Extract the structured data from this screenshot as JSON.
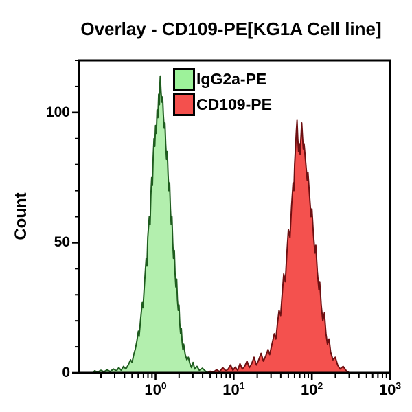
{
  "title": "Overlay - CD109-PE[KG1A Cell line]",
  "colors": {
    "background": "#ffffff",
    "axis": "#000000",
    "text": "#000000",
    "green_fill": "#b3efae",
    "green_stroke": "#1e5c1e",
    "red_fill": "#f4514e",
    "red_stroke": "#6e1012"
  },
  "chart_data": {
    "type": "area",
    "subtype": "flow-cytometry-overlay-histogram",
    "title": "Overlay - CD109-PE[KG1A Cell line]",
    "xlabel": "",
    "ylabel": "Count",
    "grid": false,
    "legend_position": "top-center-inside",
    "x_axis": {
      "scale": "log10",
      "log_min": -0.98,
      "log_max": 3.0,
      "major_ticks": [
        {
          "label_base": "10",
          "label_exp": "0",
          "log": 0
        },
        {
          "label_base": "10",
          "label_exp": "1",
          "log": 1
        },
        {
          "label_base": "10",
          "label_exp": "2",
          "log": 2
        },
        {
          "label_base": "10",
          "label_exp": "3",
          "log": 3
        }
      ]
    },
    "y_axis": {
      "min": 0,
      "max": 120,
      "major_ticks": [
        {
          "label": "0",
          "value": 0
        },
        {
          "label": "50",
          "value": 50
        },
        {
          "label": "100",
          "value": 100
        }
      ],
      "minor_tick_values": [
        10,
        20,
        30,
        40,
        60,
        70,
        80,
        90,
        110,
        120
      ]
    },
    "series": [
      {
        "name": "IgG2a-PE",
        "legend_fill": "#9df29a",
        "fill": "#b3efae",
        "stroke": "#1e5c1e",
        "peak": {
          "x_log": 0.06,
          "x_value": 1.1,
          "count": 114
        },
        "points": [
          [
            -0.98,
            0
          ],
          [
            -0.8,
            0
          ],
          [
            -0.78,
            0.8
          ],
          [
            -0.74,
            0.3
          ],
          [
            -0.7,
            1
          ],
          [
            -0.66,
            0.4
          ],
          [
            -0.62,
            1.2
          ],
          [
            -0.58,
            0.5
          ],
          [
            -0.54,
            1.5
          ],
          [
            -0.5,
            0.8
          ],
          [
            -0.47,
            2
          ],
          [
            -0.44,
            1
          ],
          [
            -0.41,
            2.5
          ],
          [
            -0.38,
            1.5
          ],
          [
            -0.35,
            3
          ],
          [
            -0.32,
            5
          ],
          [
            -0.3,
            4
          ],
          [
            -0.28,
            7
          ],
          [
            -0.26,
            9
          ],
          [
            -0.24,
            12
          ],
          [
            -0.22,
            16
          ],
          [
            -0.21,
            14
          ],
          [
            -0.19,
            21
          ],
          [
            -0.17,
            27
          ],
          [
            -0.16,
            25
          ],
          [
            -0.14,
            35
          ],
          [
            -0.12,
            44
          ],
          [
            -0.11,
            41
          ],
          [
            -0.1,
            52
          ],
          [
            -0.08,
            60
          ],
          [
            -0.07,
            57
          ],
          [
            -0.06,
            68
          ],
          [
            -0.05,
            75
          ],
          [
            -0.04,
            72
          ],
          [
            -0.03,
            83
          ],
          [
            -0.02,
            90
          ],
          [
            -0.01,
            87
          ],
          [
            0.0,
            95
          ],
          [
            0.01,
            92
          ],
          [
            0.02,
            101
          ],
          [
            0.03,
            98
          ],
          [
            0.04,
            107
          ],
          [
            0.05,
            103
          ],
          [
            0.055,
            110
          ],
          [
            0.06,
            114
          ],
          [
            0.07,
            108
          ],
          [
            0.08,
            104
          ],
          [
            0.09,
            106
          ],
          [
            0.1,
            99
          ],
          [
            0.11,
            94
          ],
          [
            0.12,
            96
          ],
          [
            0.13,
            88
          ],
          [
            0.14,
            82
          ],
          [
            0.15,
            85
          ],
          [
            0.16,
            76
          ],
          [
            0.17,
            70
          ],
          [
            0.18,
            73
          ],
          [
            0.19,
            63
          ],
          [
            0.2,
            57
          ],
          [
            0.21,
            60
          ],
          [
            0.22,
            50
          ],
          [
            0.23,
            44
          ],
          [
            0.24,
            47
          ],
          [
            0.25,
            38
          ],
          [
            0.26,
            33
          ],
          [
            0.27,
            36
          ],
          [
            0.28,
            28
          ],
          [
            0.29,
            24
          ],
          [
            0.3,
            26
          ],
          [
            0.31,
            19
          ],
          [
            0.32,
            15
          ],
          [
            0.33,
            17
          ],
          [
            0.34,
            12
          ],
          [
            0.35,
            9
          ],
          [
            0.36,
            11
          ],
          [
            0.38,
            7
          ],
          [
            0.4,
            5
          ],
          [
            0.42,
            6
          ],
          [
            0.44,
            3.5
          ],
          [
            0.46,
            2
          ],
          [
            0.48,
            4
          ],
          [
            0.5,
            1.5
          ],
          [
            0.53,
            2.5
          ],
          [
            0.56,
            1
          ],
          [
            0.6,
            1.8
          ],
          [
            0.64,
            0.6
          ],
          [
            0.68,
            0
          ]
        ]
      },
      {
        "name": "CD109-PE",
        "legend_fill": "#f4504d",
        "fill": "#f4514e",
        "stroke": "#6e1012",
        "peak": {
          "x_log": 1.81,
          "x_value": 65,
          "count": 97
        },
        "points": [
          [
            0.66,
            0
          ],
          [
            0.7,
            0.6
          ],
          [
            0.74,
            0.3
          ],
          [
            0.78,
            1.2
          ],
          [
            0.82,
            0.5
          ],
          [
            0.86,
            2
          ],
          [
            0.9,
            0.8
          ],
          [
            0.93,
            1.5
          ],
          [
            0.96,
            3
          ],
          [
            0.99,
            1
          ],
          [
            1.02,
            2.2
          ],
          [
            1.05,
            1
          ],
          [
            1.08,
            3.5
          ],
          [
            1.11,
            1.5
          ],
          [
            1.14,
            2.5
          ],
          [
            1.17,
            4.5
          ],
          [
            1.2,
            2
          ],
          [
            1.23,
            3.5
          ],
          [
            1.26,
            6
          ],
          [
            1.29,
            3
          ],
          [
            1.32,
            5
          ],
          [
            1.35,
            7.5
          ],
          [
            1.38,
            4.5
          ],
          [
            1.41,
            6.5
          ],
          [
            1.44,
            9
          ],
          [
            1.46,
            7
          ],
          [
            1.49,
            11
          ],
          [
            1.52,
            15
          ],
          [
            1.54,
            13
          ],
          [
            1.56,
            19
          ],
          [
            1.58,
            24
          ],
          [
            1.6,
            22
          ],
          [
            1.62,
            30
          ],
          [
            1.64,
            38
          ],
          [
            1.66,
            35
          ],
          [
            1.68,
            46
          ],
          [
            1.7,
            55
          ],
          [
            1.72,
            52
          ],
          [
            1.74,
            64
          ],
          [
            1.76,
            73
          ],
          [
            1.77,
            70
          ],
          [
            1.78,
            80
          ],
          [
            1.79,
            86
          ],
          [
            1.8,
            92
          ],
          [
            1.81,
            97
          ],
          [
            1.82,
            90
          ],
          [
            1.83,
            85
          ],
          [
            1.84,
            88
          ],
          [
            1.85,
            84
          ],
          [
            1.86,
            90
          ],
          [
            1.87,
            96
          ],
          [
            1.88,
            91
          ],
          [
            1.89,
            86
          ],
          [
            1.9,
            88
          ],
          [
            1.92,
            81
          ],
          [
            1.94,
            74
          ],
          [
            1.95,
            77
          ],
          [
            1.97,
            68
          ],
          [
            1.99,
            60
          ],
          [
            2.0,
            63
          ],
          [
            2.02,
            53
          ],
          [
            2.04,
            46
          ],
          [
            2.05,
            49
          ],
          [
            2.07,
            39
          ],
          [
            2.09,
            32
          ],
          [
            2.1,
            35
          ],
          [
            2.12,
            26
          ],
          [
            2.14,
            20
          ],
          [
            2.16,
            23
          ],
          [
            2.18,
            15
          ],
          [
            2.2,
            11
          ],
          [
            2.22,
            13
          ],
          [
            2.24,
            8
          ],
          [
            2.27,
            5
          ],
          [
            2.3,
            6
          ],
          [
            2.33,
            3
          ],
          [
            2.36,
            1.5
          ],
          [
            2.4,
            2.5
          ],
          [
            2.44,
            0.8
          ],
          [
            2.48,
            0
          ]
        ]
      }
    ]
  }
}
